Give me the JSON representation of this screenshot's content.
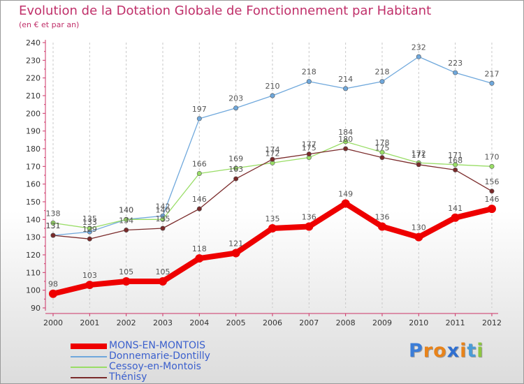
{
  "chart_data": {
    "type": "line",
    "title": "Evolution de la Dotation Globale de Fonctionnement par Habitant",
    "subtitle": "(en € et par an)",
    "xlabel": "",
    "ylabel": "",
    "ylim": [
      90,
      240
    ],
    "yticks": [
      90,
      100,
      110,
      120,
      130,
      140,
      150,
      160,
      170,
      180,
      190,
      200,
      210,
      220,
      230,
      240
    ],
    "categories": [
      "2000",
      "2001",
      "2002",
      "2003",
      "2004",
      "2005",
      "2006",
      "2007",
      "2008",
      "2009",
      "2010",
      "2011",
      "2012"
    ],
    "grid": "vertical-dashed",
    "legend_position": "bottom-left",
    "series": [
      {
        "name": "Donnemarie-Dontilly",
        "color": "#6fa8dc",
        "values": [
          131,
          133,
          140,
          142,
          197,
          203,
          210,
          218,
          214,
          218,
          232,
          223,
          217
        ]
      },
      {
        "name": "Cessoy-en-Montois",
        "color": "#99dd66",
        "values": [
          138,
          135,
          140,
          140,
          166,
          169,
          172,
          175,
          184,
          178,
          172,
          171,
          170
        ]
      },
      {
        "name": "Thénisy",
        "color": "#7a2a2a",
        "values": [
          131,
          129,
          134,
          135,
          146,
          163,
          174,
          177,
          180,
          175,
          171,
          168,
          156
        ]
      },
      {
        "name": "MONS-EN-MONTOIS",
        "color": "#ee0000",
        "values": [
          98,
          103,
          105,
          105,
          118,
          121,
          135,
          136,
          149,
          136,
          130,
          141,
          146
        ]
      }
    ],
    "point_labels": [
      {
        "series": "Donnemarie-Dontilly",
        "labels": [
          "131",
          "133",
          "140",
          "142",
          "197",
          "203",
          "210",
          "218",
          "214",
          "218",
          "232",
          "223",
          "217"
        ]
      },
      {
        "series": "Cessoy-en-Montois",
        "labels": [
          "138",
          "135",
          "140",
          "140",
          "166",
          "169",
          "172",
          "175",
          "184",
          "178",
          "172",
          "171",
          "170"
        ]
      },
      {
        "series": "Thénisy",
        "labels": [
          "131",
          "129",
          "134",
          "135",
          "146",
          "163",
          "174",
          "177",
          "180",
          "175",
          "171",
          "168",
          "156"
        ]
      },
      {
        "series": "MONS-EN-MONTOIS",
        "labels": [
          "98",
          "103",
          "105",
          "105",
          "118",
          "121",
          "135",
          "136",
          "149",
          "136",
          "130",
          "141",
          "146"
        ]
      }
    ]
  },
  "legend": {
    "items": [
      {
        "label": "MONS-EN-MONTOIS",
        "color": "#ee0000",
        "text_color": "#3a5fcd"
      },
      {
        "label": "Donnemarie-Dontilly",
        "color": "#6fa8dc",
        "text_color": "#3a5fcd"
      },
      {
        "label": "Cessoy-en-Montois",
        "color": "#99dd66",
        "text_color": "#3a5fcd"
      },
      {
        "label": "Thénisy",
        "color": "#7a2a2a",
        "text_color": "#3a5fcd"
      }
    ]
  },
  "logo": {
    "text": "Proxiti",
    "letter_colors": [
      "#3b7dd8",
      "#e8831a",
      "#e8831a",
      "#2f6fd0",
      "#e8831a",
      "#4a9bd6",
      "#8dc63f"
    ]
  }
}
